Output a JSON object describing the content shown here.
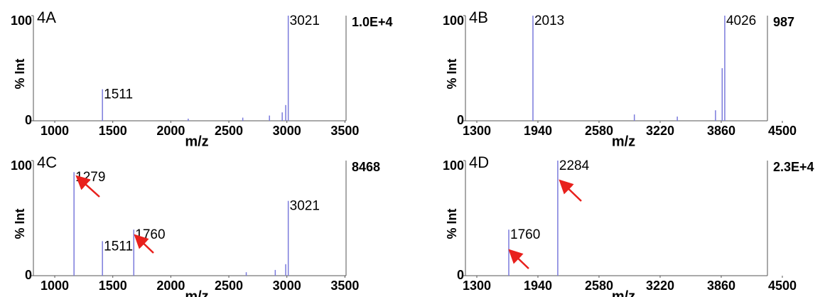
{
  "chart_data": [
    {
      "type": "spectrum",
      "title": "4A",
      "ylabel": "% Int",
      "xlabel": "m/z",
      "intensity_label": "1.0E+4",
      "xlim": [
        816,
        3510
      ],
      "xticks": [
        1000,
        1500,
        2000,
        2500,
        3000,
        3500
      ],
      "ylim": [
        0,
        100
      ],
      "yticks": [
        0,
        100
      ],
      "color": "#7a7adc",
      "x": [
        1411,
        2150,
        2620,
        2850,
        2960,
        2990,
        3012
      ],
      "values": [
        30,
        2,
        3,
        5,
        8,
        15,
        100
      ],
      "peak_labels": [
        "1511",
        null,
        null,
        null,
        null,
        null,
        "3021"
      ]
    },
    {
      "type": "spectrum",
      "title": "4B",
      "ylabel": "% Int",
      "xlabel": "m/z",
      "intensity_label": "987",
      "xlim": [
        1181,
        4344
      ],
      "xticks": [
        1300,
        1940,
        2580,
        3220,
        3860,
        4500
      ],
      "ylim": [
        0,
        100
      ],
      "yticks": [
        0,
        100
      ],
      "color": "#7a7adc",
      "x": [
        1888,
        2950,
        3400,
        3800,
        3870,
        3897
      ],
      "values": [
        100,
        6,
        4,
        10,
        50,
        100
      ],
      "peak_labels": [
        "2013",
        null,
        null,
        null,
        null,
        "4026"
      ]
    },
    {
      "type": "spectrum",
      "title": "4C",
      "ylabel": "% Int",
      "xlabel": "m/z",
      "intensity_label": "8468",
      "xlim": [
        816,
        3510
      ],
      "xticks": [
        1000,
        1500,
        2000,
        2500,
        3000,
        3500
      ],
      "ylim": [
        0,
        100
      ],
      "yticks": [
        0,
        100
      ],
      "color": "#7a7adc",
      "x": [
        1166,
        1411,
        1681,
        2650,
        2900,
        2990,
        3012
      ],
      "values": [
        90,
        30,
        40,
        3,
        5,
        10,
        65
      ],
      "peak_labels": [
        "1279",
        "1511",
        "1760",
        null,
        null,
        null,
        "3021"
      ]
    },
    {
      "type": "spectrum",
      "title": "4D",
      "ylabel": "% Int",
      "xlabel": "m/z",
      "intensity_label": "2.3E+4",
      "xlim": [
        1181,
        4344
      ],
      "xticks": [
        1300,
        1940,
        2580,
        3220,
        3860,
        4500
      ],
      "ylim": [
        0,
        100
      ],
      "yticks": [
        0,
        100
      ],
      "color": "#7a7adc",
      "x": [
        1635,
        2148
      ],
      "values": [
        40,
        100
      ],
      "peak_labels": [
        "1760",
        "2284"
      ]
    }
  ]
}
